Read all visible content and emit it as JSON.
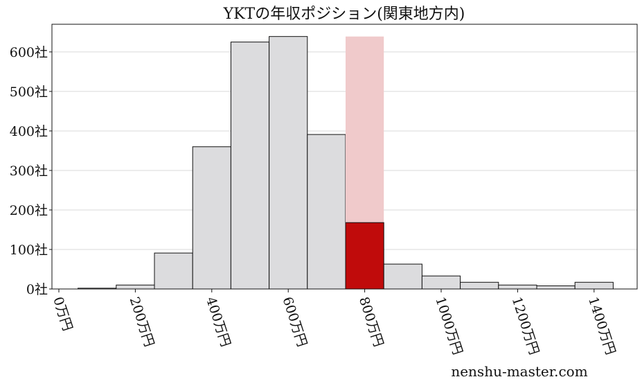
{
  "chart_data": {
    "type": "bar",
    "title": "YKTの年収ポジション(関東地方内)",
    "xlabel": "",
    "ylabel": "",
    "bin_centers": [
      100,
      200,
      300,
      400,
      500,
      600,
      700,
      800,
      900,
      1000,
      1100,
      1200,
      1300,
      1400
    ],
    "bin_width": 100,
    "values": [
      2,
      10,
      91,
      360,
      625,
      639,
      391,
      168,
      63,
      33,
      17,
      10,
      8,
      17
    ],
    "highlight": {
      "bin_center": 800,
      "value": 168,
      "background_value": 639
    },
    "xlim": [
      -20,
      1510
    ],
    "ylim": [
      0,
      670
    ],
    "xticks": [
      0,
      200,
      400,
      600,
      800,
      1000,
      1200,
      1400
    ],
    "xtick_labels": [
      "0万円",
      "200万円",
      "400万円",
      "600万円",
      "800万円",
      "1000万円",
      "1200万円",
      "1400万円"
    ],
    "yticks": [
      0,
      100,
      200,
      300,
      400,
      500,
      600
    ],
    "ytick_labels": [
      "0社",
      "100社",
      "200社",
      "300社",
      "400社",
      "500社",
      "600社"
    ],
    "grid": "horizontal",
    "colors": {
      "bar": "#dcdcde",
      "highlight": "#c00b0b",
      "highlight_background": "#f0cacb",
      "grid": "#d9d9d9"
    }
  },
  "watermark": "nenshu-master.com"
}
